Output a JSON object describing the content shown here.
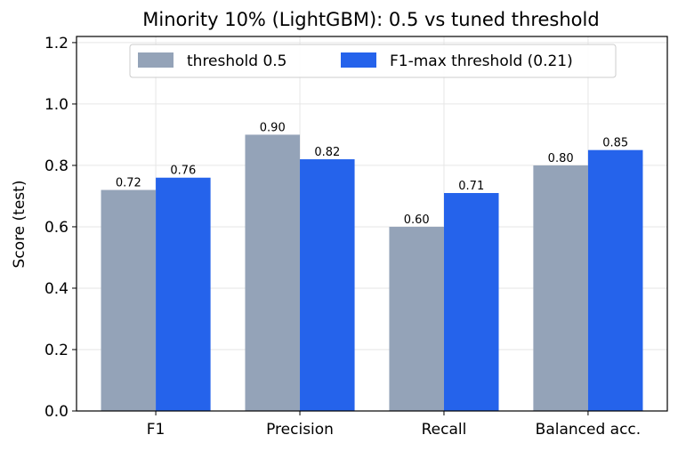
{
  "chart_data": {
    "type": "bar",
    "title": "Minority 10% (LightGBM): 0.5 vs tuned threshold",
    "xlabel": "",
    "ylabel": "Score (test)",
    "categories": [
      "F1",
      "Precision",
      "Recall",
      "Balanced acc."
    ],
    "series": [
      {
        "name": "threshold 0.5",
        "values": [
          0.72,
          0.9,
          0.6,
          0.8
        ],
        "labels": [
          "0.72",
          "0.90",
          "0.60",
          "0.80"
        ],
        "color": "#94a3b8"
      },
      {
        "name": "F1-max threshold (0.21)",
        "values": [
          0.76,
          0.82,
          0.71,
          0.85
        ],
        "labels": [
          "0.76",
          "0.82",
          "0.71",
          "0.85"
        ],
        "color": "#2563eb"
      }
    ],
    "ylim": [
      0,
      1.22
    ],
    "yticks": [
      "0.0",
      "0.2",
      "0.4",
      "0.6",
      "0.8",
      "1.0",
      "1.2"
    ],
    "grid": true,
    "legend_position": "top-center"
  }
}
